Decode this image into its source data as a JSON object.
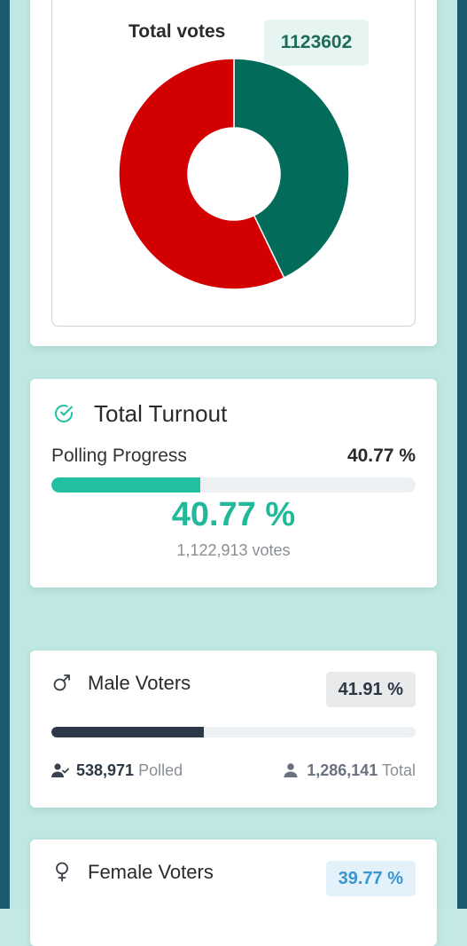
{
  "vote_share": {
    "total_label": "Total votes",
    "total_value": "1123602",
    "colors": {
      "red": "#d20000",
      "green": "#026b5a"
    }
  },
  "chart_data": {
    "type": "pie",
    "title": "",
    "categories": [
      "",
      ""
    ],
    "values": [
      642400,
      481202
    ],
    "colors": [
      "#d20000",
      "#026b5a"
    ],
    "hole": 0.4
  },
  "turnout": {
    "title": "Total Turnout",
    "icon": "check-circle-icon",
    "progress_label": "Polling Progress",
    "progress_value": "40.77 %",
    "progress_fraction": 0.4077,
    "big_value": "40.77 %",
    "votes_text": "1,122,913 votes",
    "accent": "#21c0a0"
  },
  "male": {
    "title": "Male Voters",
    "icon": "male-symbol-icon",
    "badge": "41.91 %",
    "fraction": 0.4191,
    "polled_value": "538,971",
    "polled_label": "Polled",
    "total_value": "1,286,141",
    "total_label": "Total",
    "accent": "#2c3748"
  },
  "female": {
    "title": "Female Voters",
    "icon": "female-symbol-icon",
    "badge": "39.77 %",
    "fraction": 0.3977,
    "accent": "#3a94d0"
  }
}
